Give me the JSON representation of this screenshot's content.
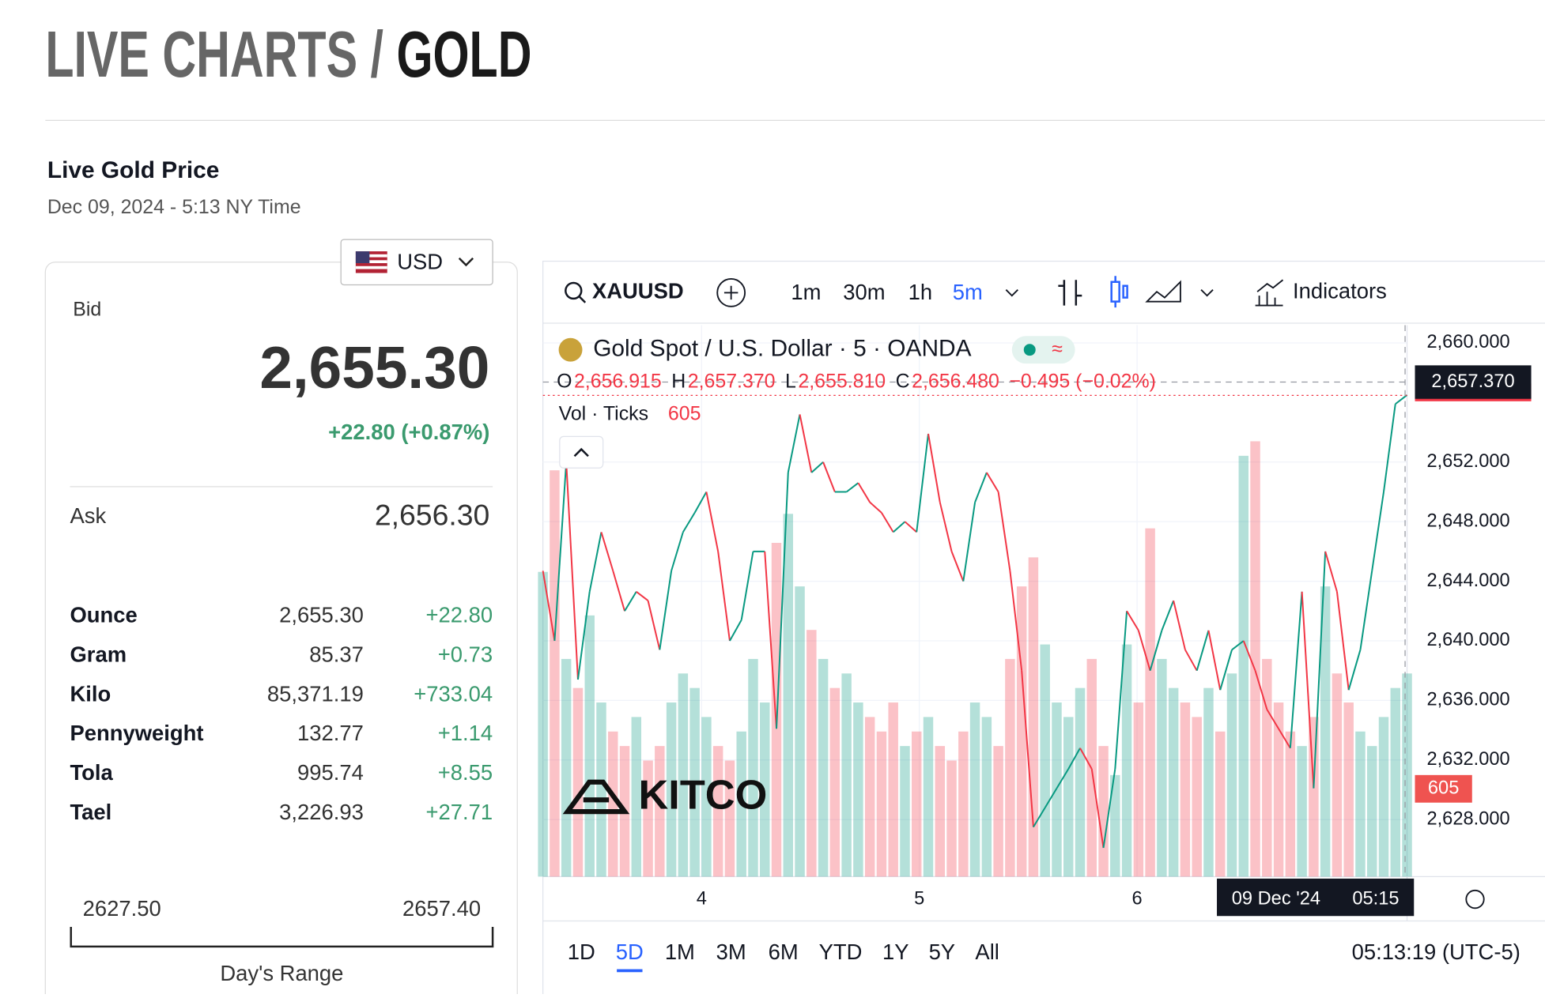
{
  "header": {
    "title_prefix": "LIVE CHARTS / ",
    "title_main": "GOLD"
  },
  "price_panel": {
    "title": "Live Gold Price",
    "timestamp": "Dec 09, 2024 - 5:13 NY Time",
    "currency": "USD",
    "bid_label": "Bid",
    "bid": "2,655.30",
    "change": "+22.80 (+0.87%)",
    "ask_label": "Ask",
    "ask": "2,656.30",
    "units": [
      [
        "Ounce",
        "2,655.30",
        "+22.80"
      ],
      [
        "Gram",
        "85.37",
        "+0.73"
      ],
      [
        "Kilo",
        "85,371.19",
        "+733.04"
      ],
      [
        "Pennyweight",
        "132.77",
        "+1.14"
      ],
      [
        "Tola",
        "995.74",
        "+8.55"
      ],
      [
        "Tael",
        "3,226.93",
        "+27.71"
      ]
    ],
    "range_low": "2627.50",
    "range_high": "2657.40",
    "range_label": "Day's Range"
  },
  "toolbar": {
    "symbol": "XAUUSD",
    "intervals": [
      "1m",
      "30m",
      "1h",
      "5m"
    ],
    "active_interval": 3,
    "indicators": "Indicators"
  },
  "chart_data": {
    "type": "line",
    "title": "Gold Spot / U.S. Dollar · 5 · OANDA",
    "ohlc": [
      {
        "key": "O",
        "label": "2,656.915"
      },
      {
        "key": "H",
        "label": "2,657.370"
      },
      {
        "key": "L",
        "label": "2,655.810"
      },
      {
        "key": "C",
        "value": 2656.48,
        "label": "2,656.480"
      }
    ],
    "change": "−0.495 (−0.02%)",
    "volume_label": "Vol · Ticks",
    "volume_last": 605,
    "values": [
      2644.7,
      2640.0,
      2652.0,
      2637.4,
      2643.3,
      2647.3,
      2644.7,
      2642.0,
      2643.3,
      2642.7,
      2639.4,
      2644.7,
      2647.3,
      2648.6,
      2650.0,
      2646.0,
      2640.0,
      2641.4,
      2646.0,
      2646.0,
      2634.1,
      2651.3,
      2655.2,
      2651.3,
      2652.0,
      2650.0,
      2650.0,
      2650.6,
      2649.3,
      2648.6,
      2647.3,
      2648.0,
      2647.3,
      2653.9,
      2649.3,
      2646.0,
      2644.0,
      2649.3,
      2651.3,
      2650.0,
      2644.7,
      2638.0,
      2627.5,
      2628.8,
      2630.1,
      2631.4,
      2632.8,
      2631.4,
      2626.1,
      2631.4,
      2642.0,
      2640.7,
      2638.0,
      2640.7,
      2642.7,
      2639.4,
      2638.0,
      2640.7,
      2636.7,
      2639.4,
      2640.0,
      2638.0,
      2635.4,
      2634.1,
      2632.8,
      2643.3,
      2630.1,
      2646.0,
      2643.3,
      2636.7,
      2639.4,
      2644.7,
      2650.0,
      2655.9,
      2656.5
    ],
    "volumes": [
      2100,
      2800,
      1500,
      1300,
      1800,
      1200,
      1000,
      900,
      1100,
      800,
      900,
      1200,
      1400,
      1300,
      1100,
      900,
      800,
      1000,
      1500,
      1200,
      2300,
      2500,
      2000,
      1700,
      1500,
      1300,
      1400,
      1200,
      1100,
      1000,
      1200,
      900,
      1000,
      1100,
      900,
      800,
      1000,
      1200,
      1100,
      900,
      1500,
      2000,
      2200,
      1600,
      1200,
      1100,
      1300,
      1500,
      900,
      700,
      1600,
      1200,
      2400,
      1500,
      1300,
      1200,
      1100,
      1300,
      1000,
      1400,
      2900,
      3000,
      1500,
      1200,
      1000,
      900,
      1100,
      2000,
      1400,
      1200,
      1000,
      900,
      1100,
      1300,
      1400
    ],
    "up_color": "#089981",
    "down_color": "#f23645",
    "ylim": [
      2624.17,
      2661.19
    ],
    "volume_lim": [
      0,
      3800
    ],
    "yticks": [
      {
        "value": 2628,
        "label": "2,628.000"
      },
      {
        "value": 2632,
        "label": "2,632.000"
      },
      {
        "value": 2636,
        "label": "2,636.000"
      },
      {
        "value": 2640,
        "label": "2,640.000"
      },
      {
        "value": 2644,
        "label": "2,644.000"
      },
      {
        "value": 2648,
        "label": "2,648.000"
      },
      {
        "value": 2652,
        "label": "2,652.000"
      },
      {
        "value": 2660,
        "label": "2,660.000"
      }
    ],
    "crosshair_price": {
      "value": 2657.37,
      "label": "2,657.370"
    },
    "x_labels": [
      "4",
      "5",
      "6"
    ],
    "crosshair_date": "09 Dec '24",
    "crosshair_time": "05:15",
    "watermark": "KITCO",
    "grid": true
  },
  "footer": {
    "ranges": [
      "1D",
      "5D",
      "1M",
      "3M",
      "6M",
      "YTD",
      "1Y",
      "5Y",
      "All"
    ],
    "active_range": 1,
    "clock": "05:13:19 (UTC-5)"
  }
}
